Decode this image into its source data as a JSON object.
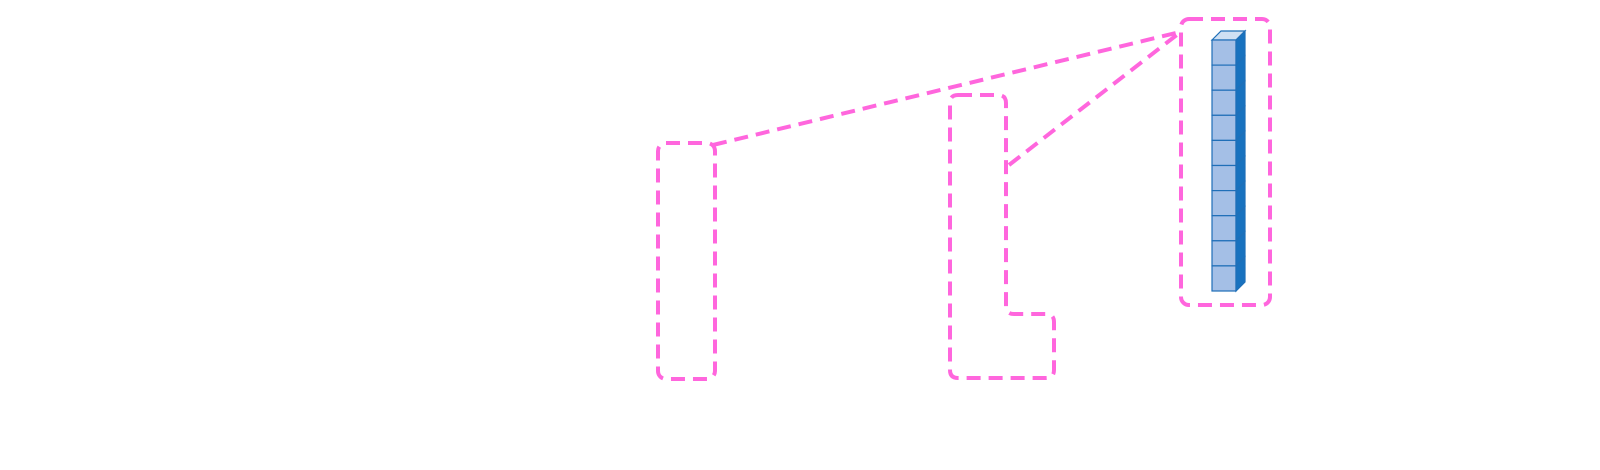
{
  "colors": {
    "highlight": "#ff66dd",
    "cell_face": "#a4bfe6",
    "cell_side": "#1872bf",
    "cell_top": "#cfe0f3",
    "cell_edge": "#1f6fb8",
    "background": "#ffffff"
  },
  "vector": {
    "cell_count": 10
  }
}
